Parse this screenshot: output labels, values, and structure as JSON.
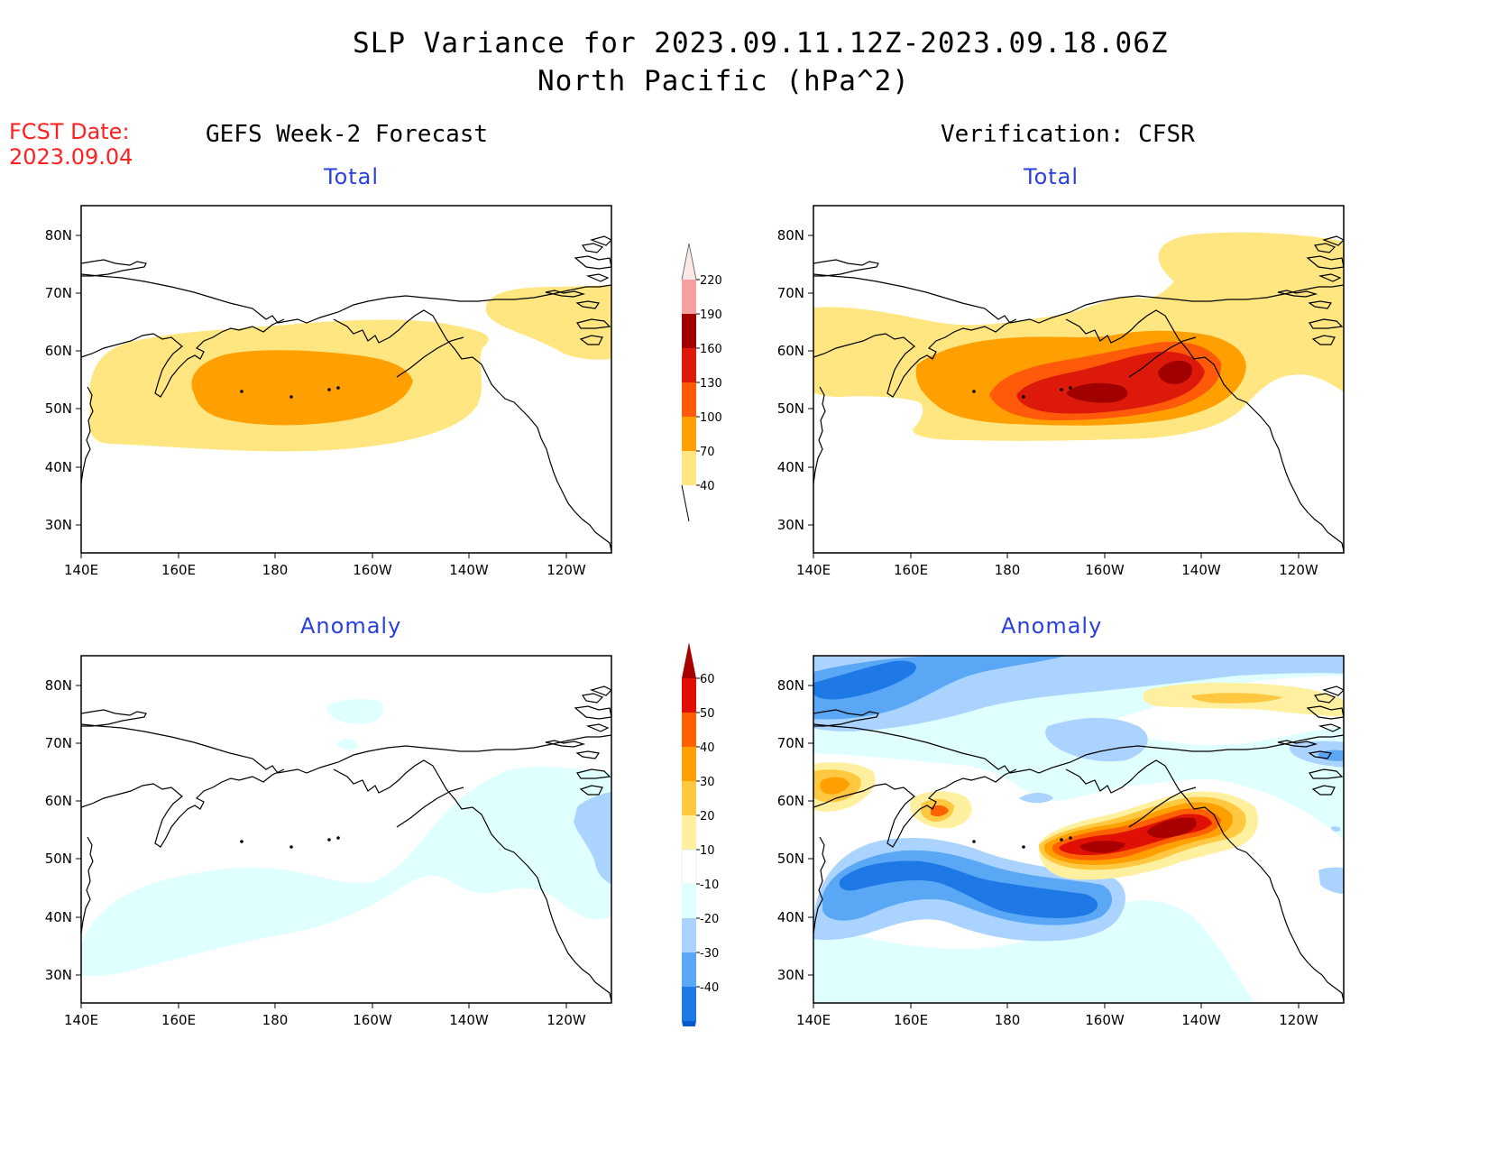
{
  "header": {
    "title_line1": "SLP Variance for 2023.09.11.12Z-2023.09.18.06Z",
    "title_line2": "North Pacific (hPa^2)",
    "fcst_label": "FCST Date:",
    "fcst_date": "2023.09.04"
  },
  "columns": {
    "left": "GEFS Week-2 Forecast",
    "right": "Verification: CFSR"
  },
  "panel_titles": {
    "total": "Total",
    "anomaly": "Anomaly"
  },
  "axes": {
    "lat_labels": [
      "80N",
      "70N",
      "60N",
      "50N",
      "40N",
      "30N"
    ],
    "lon_labels": [
      "140E",
      "160E",
      "180",
      "160W",
      "140W",
      "120W"
    ]
  },
  "colorbar_total": {
    "levels": [
      "220",
      "190",
      "160",
      "130",
      "100",
      "70",
      "40"
    ],
    "colors": [
      "#fde8e8",
      "#f4a0a0",
      "#a00000",
      "#dd1a0a",
      "#ff5a0a",
      "#ff9f00",
      "#ffe680"
    ]
  },
  "colorbar_anomaly": {
    "levels": [
      "60",
      "50",
      "40",
      "30",
      "20",
      "10",
      "-10",
      "-20",
      "-30",
      "-40"
    ],
    "colors_top": [
      "#a80000",
      "#e01005",
      "#ff6000",
      "#ffa000",
      "#ffc840",
      "#fff0a0",
      "#ffffff",
      "#e0ffff",
      "#aad4ff",
      "#5aa8f5",
      "#1e78e6",
      "#0a58d0"
    ]
  },
  "colors": {
    "land_outline": "#000000",
    "total_40_70": "#ffe680",
    "total_70_100": "#ff9f00",
    "total_100_130": "#ff5a0a",
    "total_130_160": "#dd1a0a",
    "total_160_190": "#a00000",
    "anom_pos_10": "#fff0a0",
    "anom_pos_20": "#ffc840",
    "anom_pos_30": "#ffa000",
    "anom_pos_40": "#ff6000",
    "anom_pos_50": "#e01005",
    "anom_pos_60": "#a80000",
    "anom_neg_10": "#e0ffff",
    "anom_neg_20": "#aad4ff",
    "anom_neg_30": "#5aa8f5",
    "anom_neg_40": "#1e78e6"
  }
}
